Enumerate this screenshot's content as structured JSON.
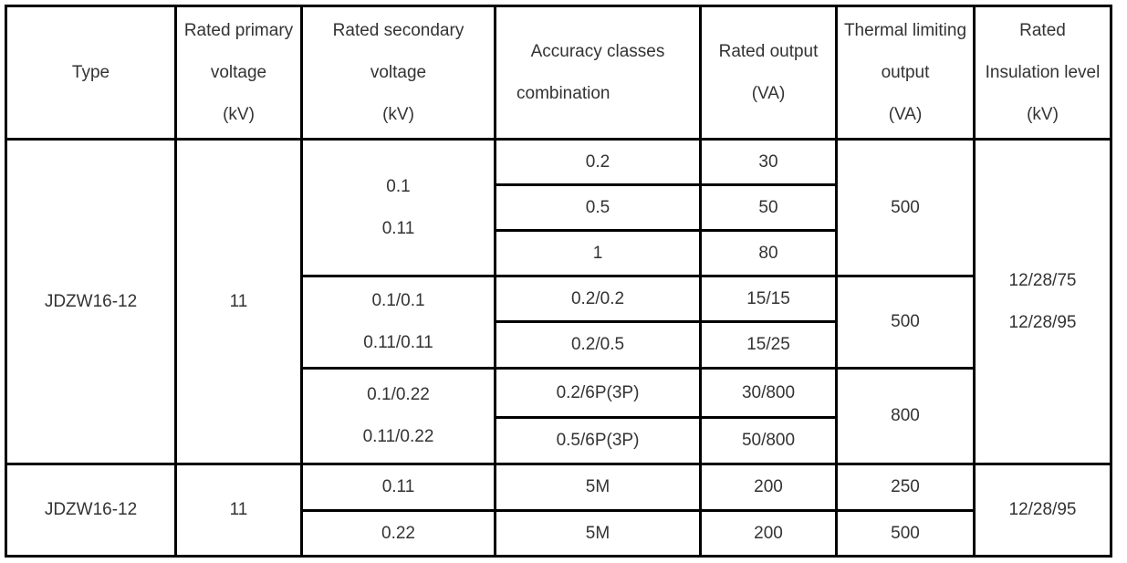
{
  "headers": {
    "type": [
      "Type"
    ],
    "primary": [
      "Rated primary",
      "voltage",
      "(kV)"
    ],
    "secondary": [
      "Rated secondary",
      "voltage",
      "(kV)"
    ],
    "accuracy": [
      "Accuracy classes",
      "combination"
    ],
    "output": [
      "Rated output",
      "(VA)"
    ],
    "thermal": [
      "Thermal limiting",
      "output",
      "(VA)"
    ],
    "insulation": [
      "Rated",
      "Insulation level",
      "(kV)"
    ]
  },
  "group1": {
    "type": "JDZW16-12",
    "primary": "11",
    "insulation": [
      "12/28/75",
      "12/28/95"
    ],
    "blocks": [
      {
        "secondary": [
          "0.1",
          "0.11"
        ],
        "thermal": "500",
        "rows": [
          {
            "accuracy": "0.2",
            "output": "30"
          },
          {
            "accuracy": "0.5",
            "output": "50"
          },
          {
            "accuracy": "1",
            "output": "80"
          }
        ]
      },
      {
        "secondary": [
          "0.1/0.1",
          "0.11/0.11"
        ],
        "thermal": "500",
        "rows": [
          {
            "accuracy": "0.2/0.2",
            "output": "15/15"
          },
          {
            "accuracy": "0.2/0.5",
            "output": "15/25"
          }
        ]
      },
      {
        "secondary": [
          "0.1/0.22",
          "0.11/0.22"
        ],
        "thermal": "800",
        "rows": [
          {
            "accuracy": "0.2/6P(3P)",
            "output": "30/800"
          },
          {
            "accuracy": "0.5/6P(3P)",
            "output": "50/800"
          }
        ]
      }
    ]
  },
  "group2": {
    "type": "JDZW16-12",
    "primary": "11",
    "insulation": "12/28/95",
    "rows": [
      {
        "secondary": "0.11",
        "accuracy": "5M",
        "output": "200",
        "thermal": "250"
      },
      {
        "secondary": "0.22",
        "accuracy": "5M",
        "output": "200",
        "thermal": "500"
      }
    ]
  }
}
